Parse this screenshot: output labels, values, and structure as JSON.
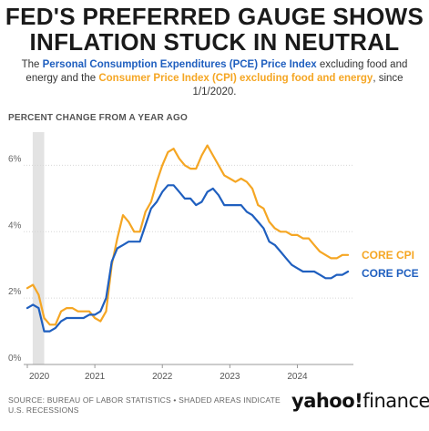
{
  "title_line1": "FED'S PREFERRED GAUGE SHOWS",
  "title_line2": "INFLATION STUCK IN NEUTRAL",
  "subtitle": {
    "part1": "The ",
    "pce_name": "Personal Consumption Expenditures (PCE) Price Index",
    "part2": " excluding food and energy and the ",
    "cpi_name": "Consumer Price Index (CPI) excluding food and energy",
    "part3": ", since 1/1/2020."
  },
  "axis_caption": "PERCENT CHANGE FROM A YEAR AGO",
  "footer": "SOURCE: BUREAU OF LABOR STATISTICS • SHADED AREAS INDICATE U.S. RECESSIONS",
  "brand": {
    "yahoo": "yahoo!",
    "finance": "finance"
  },
  "colors": {
    "cpi": "#f5a623",
    "pce": "#1f5fbf",
    "recession": "#e3e3e3",
    "grid": "#d6d6d6"
  },
  "chart_data": {
    "type": "line",
    "title": "",
    "xlabel": "",
    "ylabel": "PERCENT CHANGE FROM A YEAR AGO",
    "xlim": [
      2020.0,
      2024.83
    ],
    "ylim": [
      0,
      7
    ],
    "y_ticks": [
      0,
      2,
      4,
      6
    ],
    "y_tick_labels": [
      "0%",
      "2%",
      "4%",
      "6%"
    ],
    "x_ticks": [
      2020,
      2021,
      2022,
      2023,
      2024
    ],
    "x_tick_labels": [
      "2020",
      "2021",
      "2022",
      "2023",
      "2024"
    ],
    "grid": true,
    "recession": [
      2020.08,
      2020.25
    ],
    "x": [
      2020.0,
      2020.083,
      2020.167,
      2020.25,
      2020.333,
      2020.417,
      2020.5,
      2020.583,
      2020.667,
      2020.75,
      2020.833,
      2020.917,
      2021.0,
      2021.083,
      2021.167,
      2021.25,
      2021.333,
      2021.417,
      2021.5,
      2021.583,
      2021.667,
      2021.75,
      2021.833,
      2021.917,
      2022.0,
      2022.083,
      2022.167,
      2022.25,
      2022.333,
      2022.417,
      2022.5,
      2022.583,
      2022.667,
      2022.75,
      2022.833,
      2022.917,
      2023.0,
      2023.083,
      2023.167,
      2023.25,
      2023.333,
      2023.417,
      2023.5,
      2023.583,
      2023.667,
      2023.75,
      2023.833,
      2023.917,
      2024.0,
      2024.083,
      2024.167,
      2024.25,
      2024.333,
      2024.417,
      2024.5,
      2024.583,
      2024.667,
      2024.75
    ],
    "series": [
      {
        "name": "CORE CPI",
        "values": [
          2.3,
          2.4,
          2.1,
          1.4,
          1.2,
          1.2,
          1.6,
          1.7,
          1.7,
          1.6,
          1.6,
          1.6,
          1.4,
          1.3,
          1.6,
          3.0,
          3.8,
          4.5,
          4.3,
          4.0,
          4.0,
          4.6,
          4.9,
          5.5,
          6.0,
          6.4,
          6.5,
          6.2,
          6.0,
          5.9,
          5.9,
          6.3,
          6.6,
          6.3,
          6.0,
          5.7,
          5.6,
          5.5,
          5.6,
          5.5,
          5.3,
          4.8,
          4.7,
          4.3,
          4.1,
          4.0,
          4.0,
          3.9,
          3.9,
          3.8,
          3.8,
          3.6,
          3.4,
          3.3,
          3.2,
          3.2,
          3.3,
          3.3
        ]
      },
      {
        "name": "CORE PCE",
        "values": [
          1.7,
          1.8,
          1.7,
          1.0,
          1.0,
          1.1,
          1.3,
          1.4,
          1.4,
          1.4,
          1.4,
          1.5,
          1.5,
          1.6,
          2.0,
          3.1,
          3.5,
          3.6,
          3.7,
          3.7,
          3.7,
          4.2,
          4.7,
          4.9,
          5.2,
          5.4,
          5.4,
          5.2,
          5.0,
          5.0,
          4.8,
          4.9,
          5.2,
          5.3,
          5.1,
          4.8,
          4.8,
          4.8,
          4.8,
          4.6,
          4.5,
          4.3,
          4.1,
          3.7,
          3.6,
          3.4,
          3.2,
          3.0,
          2.9,
          2.8,
          2.8,
          2.8,
          2.7,
          2.6,
          2.6,
          2.7,
          2.7,
          2.8
        ]
      }
    ],
    "series_labels": [
      "CORE CPI",
      "CORE PCE"
    ]
  }
}
